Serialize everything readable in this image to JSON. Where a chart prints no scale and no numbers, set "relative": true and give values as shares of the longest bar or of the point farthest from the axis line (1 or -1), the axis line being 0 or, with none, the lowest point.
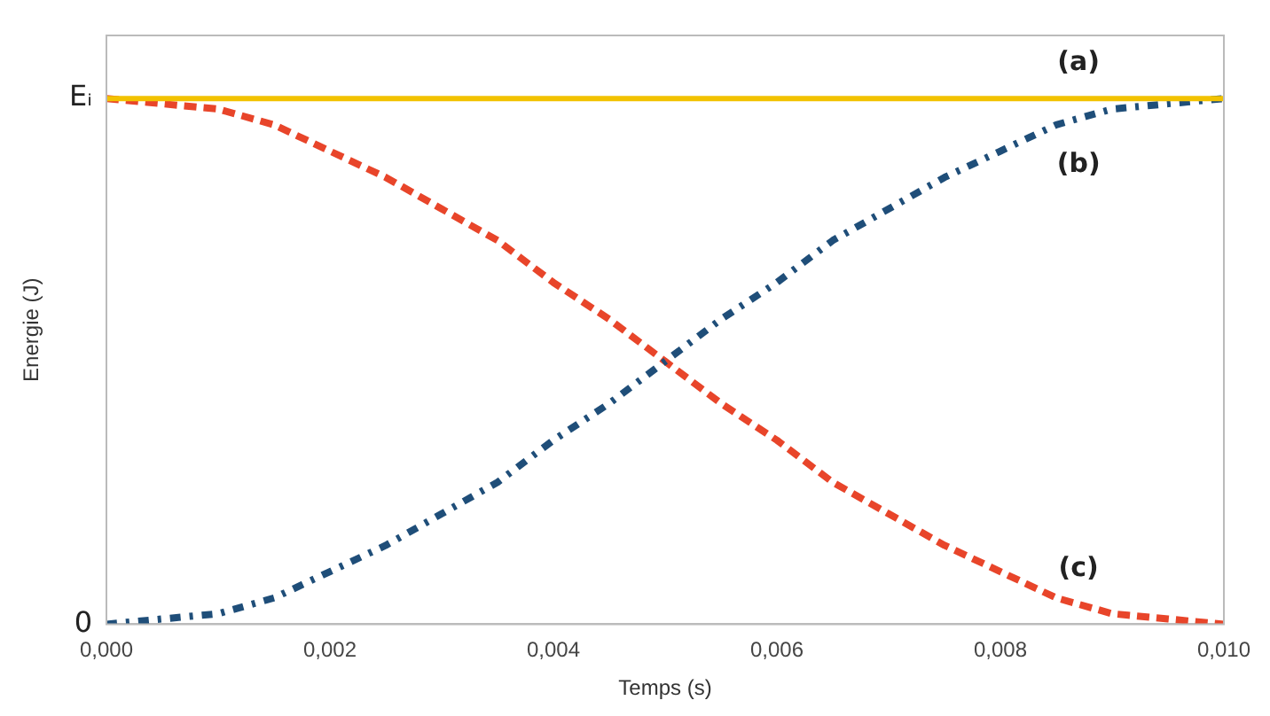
{
  "chart_data": {
    "type": "line",
    "xlabel": "Temps (s)",
    "ylabel": "Energie (J)",
    "xlim": [
      0,
      0.01
    ],
    "xticks": [
      {
        "value": 0,
        "label": "0,000"
      },
      {
        "value": 0.002,
        "label": "0,002"
      },
      {
        "value": 0.004,
        "label": "0,004"
      },
      {
        "value": 0.006,
        "label": "0,006"
      },
      {
        "value": 0.008,
        "label": "0,008"
      },
      {
        "value": 0.01,
        "label": "0,010"
      }
    ],
    "relative": true,
    "annotations": [
      "0",
      "Eᵢ"
    ],
    "grid": false,
    "legend": false,
    "marker": "none",
    "series": [
      {
        "name": "(a)",
        "color": "#f2c200",
        "line_style": "solid",
        "x": [
          0,
          0.01
        ],
        "values": [
          1,
          1
        ]
      },
      {
        "name": "(b)",
        "color": "#1f4e79",
        "line_style": "dotted",
        "x": [
          0,
          0.0005,
          0.001,
          0.0015,
          0.002,
          0.0025,
          0.003,
          0.0035,
          0.004,
          0.0045,
          0.005,
          0.0055,
          0.006,
          0.0065,
          0.007,
          0.0075,
          0.008,
          0.0085,
          0.009,
          0.0095,
          0.01
        ],
        "values": [
          0,
          0.01,
          0.02,
          0.05,
          0.1,
          0.15,
          0.21,
          0.27,
          0.35,
          0.42,
          0.5,
          0.58,
          0.65,
          0.73,
          0.79,
          0.85,
          0.9,
          0.95,
          0.98,
          0.99,
          1
        ]
      },
      {
        "name": "(c)",
        "color": "#e8452a",
        "line_style": "dashed",
        "x": [
          0,
          0.0005,
          0.001,
          0.0015,
          0.002,
          0.0025,
          0.003,
          0.0035,
          0.004,
          0.0045,
          0.005,
          0.0055,
          0.006,
          0.0065,
          0.007,
          0.0075,
          0.008,
          0.0085,
          0.009,
          0.0095,
          0.01
        ],
        "values": [
          1,
          0.99,
          0.98,
          0.95,
          0.9,
          0.85,
          0.79,
          0.73,
          0.65,
          0.58,
          0.5,
          0.42,
          0.35,
          0.27,
          0.21,
          0.15,
          0.1,
          0.05,
          0.02,
          0.01,
          0
        ]
      }
    ]
  }
}
